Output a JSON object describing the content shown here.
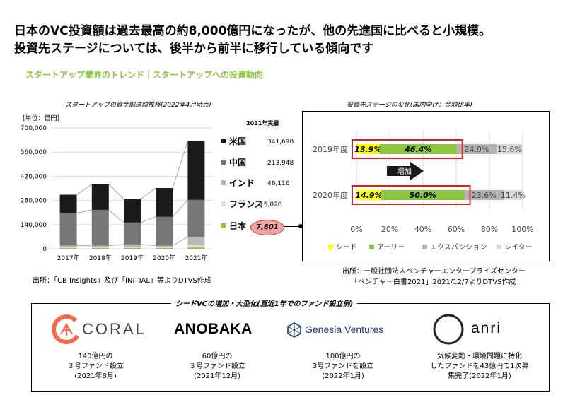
{
  "headline": {
    "line1": "日本のVC投資額は過去最高の約8,000億円になったが、他の先進国に比べると小規模。",
    "line2": "投資先ステージについては、後半から前半に移行している傾向です"
  },
  "subtitle": "スタートアップ業界のトレンド｜スタートアップへの投資動向",
  "left_chart": {
    "title": "スタートアップの資金調達額推移(2022年4月時点)",
    "unit": "[単位：億円]",
    "legend_title": "2021年実績",
    "source": "出所：「CB Insights」及び「INITIAL」等よりDTVS作成",
    "callout": "7,801"
  },
  "right_chart": {
    "title": "投資先ステージの変化(国内向け：金額比率)",
    "annotation": "増加",
    "source_line1": "出所：一般社団法人ベンチャーエンタープライズセンター",
    "source_line2": "「ベンチャー白書2021」2021/12/7よりDTVS作成"
  },
  "chart_data": [
    {
      "type": "bar",
      "stacked": true,
      "categories": [
        "2017年",
        "2018年",
        "2019年",
        "2020年",
        "2021年"
      ],
      "series": [
        {
          "name": "米国",
          "color": "#1a1a1a",
          "values": [
            107000,
            148000,
            136000,
            167000,
            341698
          ]
        },
        {
          "name": "中国",
          "color": "#777777",
          "values": [
            188000,
            208000,
            127000,
            167000,
            213948
          ]
        },
        {
          "name": "インド",
          "color": "#b8b8b8",
          "values": [
            10000,
            8000,
            14000,
            8000,
            46116
          ]
        },
        {
          "name": "フランス",
          "color": "#dedede",
          "values": [
            4000,
            5000,
            6000,
            5000,
            15028
          ]
        },
        {
          "name": "日本",
          "color": "#8cc63f",
          "values": [
            4000,
            4500,
            5000,
            5000,
            7801
          ]
        }
      ],
      "legend_values": [
        "341,698",
        "213,948",
        "46,116",
        "15,028",
        ""
      ],
      "ylim": [
        0,
        700000
      ],
      "yticks": [
        "0",
        "140,000",
        "280,000",
        "420,000",
        "560,000",
        "700,000"
      ],
      "grid": true,
      "legend": "right"
    },
    {
      "type": "bar",
      "orientation": "horizontal",
      "stacked": true,
      "categories": [
        "2019年度",
        "2020年度"
      ],
      "series": [
        {
          "name": "シード",
          "color": "#ffff00",
          "values": [
            13.9,
            14.9
          ],
          "labels": [
            "13.9%",
            "14.9%"
          ]
        },
        {
          "name": "アーリー",
          "color": "#8cc63f",
          "values": [
            46.4,
            50.0
          ],
          "labels": [
            "46.4%",
            "50.0%"
          ]
        },
        {
          "name": "エクスパンション",
          "color": "#b3b3b3",
          "values": [
            24.0,
            23.6
          ],
          "labels": [
            "24.0%",
            "23.6%"
          ]
        },
        {
          "name": "レイター",
          "color": "#d9d9d9",
          "values": [
            15.6,
            11.4
          ],
          "labels": [
            "15.6%",
            "11.4%"
          ]
        }
      ],
      "xlim": [
        0,
        100
      ],
      "xticks": [
        "0%",
        "20%",
        "40%",
        "60%",
        "80%",
        "100%"
      ],
      "grid": true,
      "legend": "bottom"
    }
  ],
  "funds": {
    "title": "シードVCの増加・大型化(直近1年でのファンド設立例)",
    "items": [
      {
        "logo": "CORAL",
        "lines": [
          "140億円の",
          "３号ファンド設立",
          "(2021年8月)"
        ]
      },
      {
        "logo": "ANOBAKA",
        "lines": [
          "60億円の",
          "３号ファンド設立",
          "(2021年12月)"
        ]
      },
      {
        "logo": "Genesia Ventures",
        "lines": [
          "100億円の",
          "3号ファンドを設立",
          "(2022年1月)"
        ]
      },
      {
        "logo": "anri",
        "lines": [
          "気候変動・環境問題に特化",
          "したファンドを43億円で1次募",
          "集完了(2022年1月)"
        ]
      }
    ],
    "colors": {
      "coral": "#f26a4b",
      "genesia": "#1d3c78"
    }
  }
}
